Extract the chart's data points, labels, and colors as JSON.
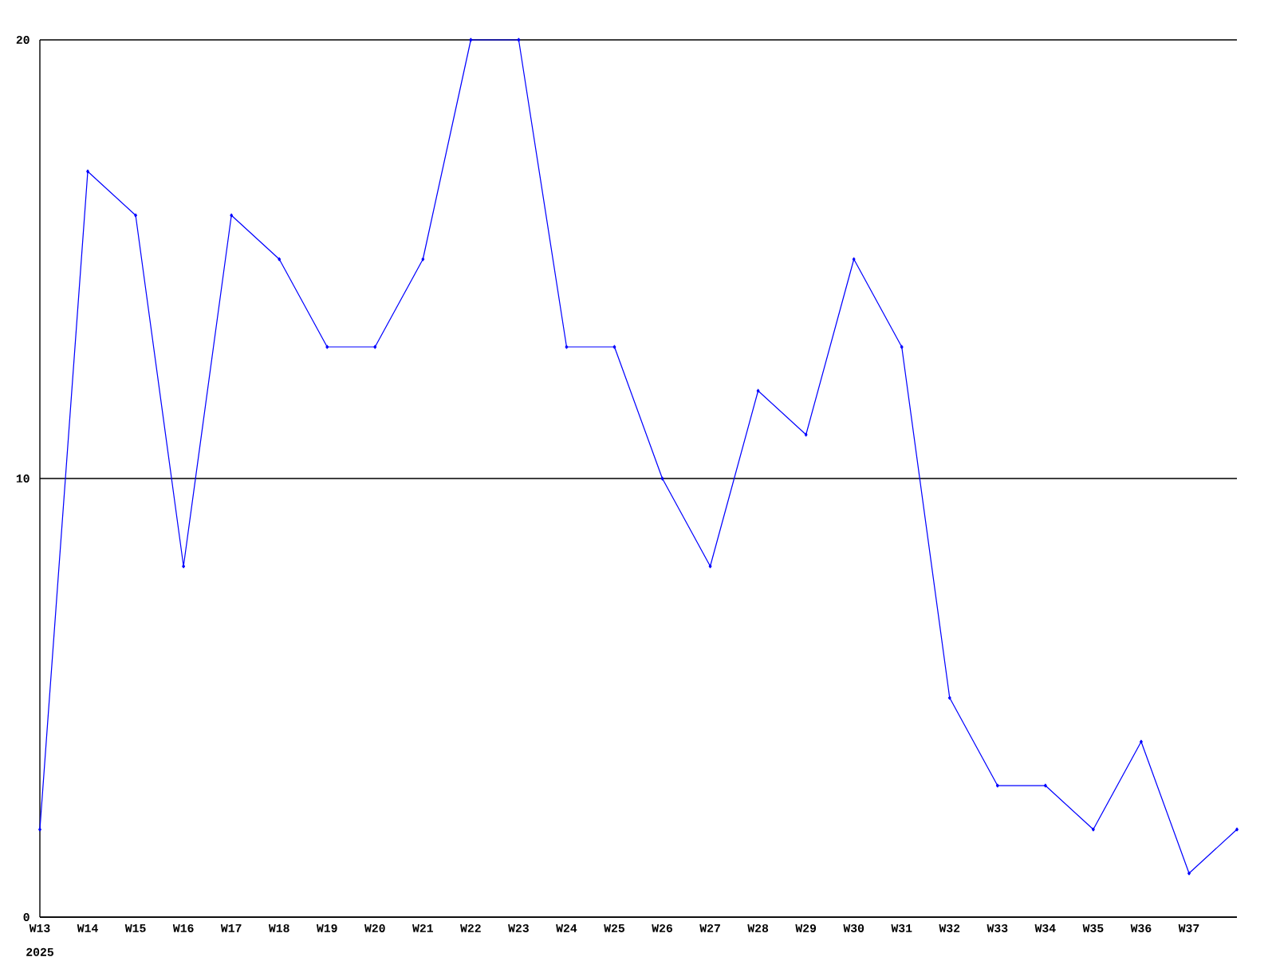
{
  "chart_data": {
    "type": "line",
    "categories": [
      "W13",
      "W14",
      "W15",
      "W16",
      "W17",
      "W18",
      "W19",
      "W20",
      "W21",
      "W22",
      "W23",
      "W24",
      "W25",
      "W26",
      "W27",
      "W28",
      "W29",
      "W30",
      "W31",
      "W32",
      "W33",
      "W34",
      "W35",
      "W36",
      "W37",
      null
    ],
    "values": [
      2,
      17,
      16,
      8,
      16,
      15,
      13,
      13,
      15,
      20,
      20,
      13,
      13,
      10,
      8,
      12,
      11,
      15,
      13,
      5,
      3,
      3,
      2,
      4,
      1,
      2
    ],
    "color": "#0000ff",
    "ylim": [
      0,
      20
    ],
    "yticks": [
      0,
      10,
      20
    ],
    "grid": "y",
    "marker": "diamond",
    "line_style": "solid",
    "annotations": [
      "2025"
    ]
  }
}
